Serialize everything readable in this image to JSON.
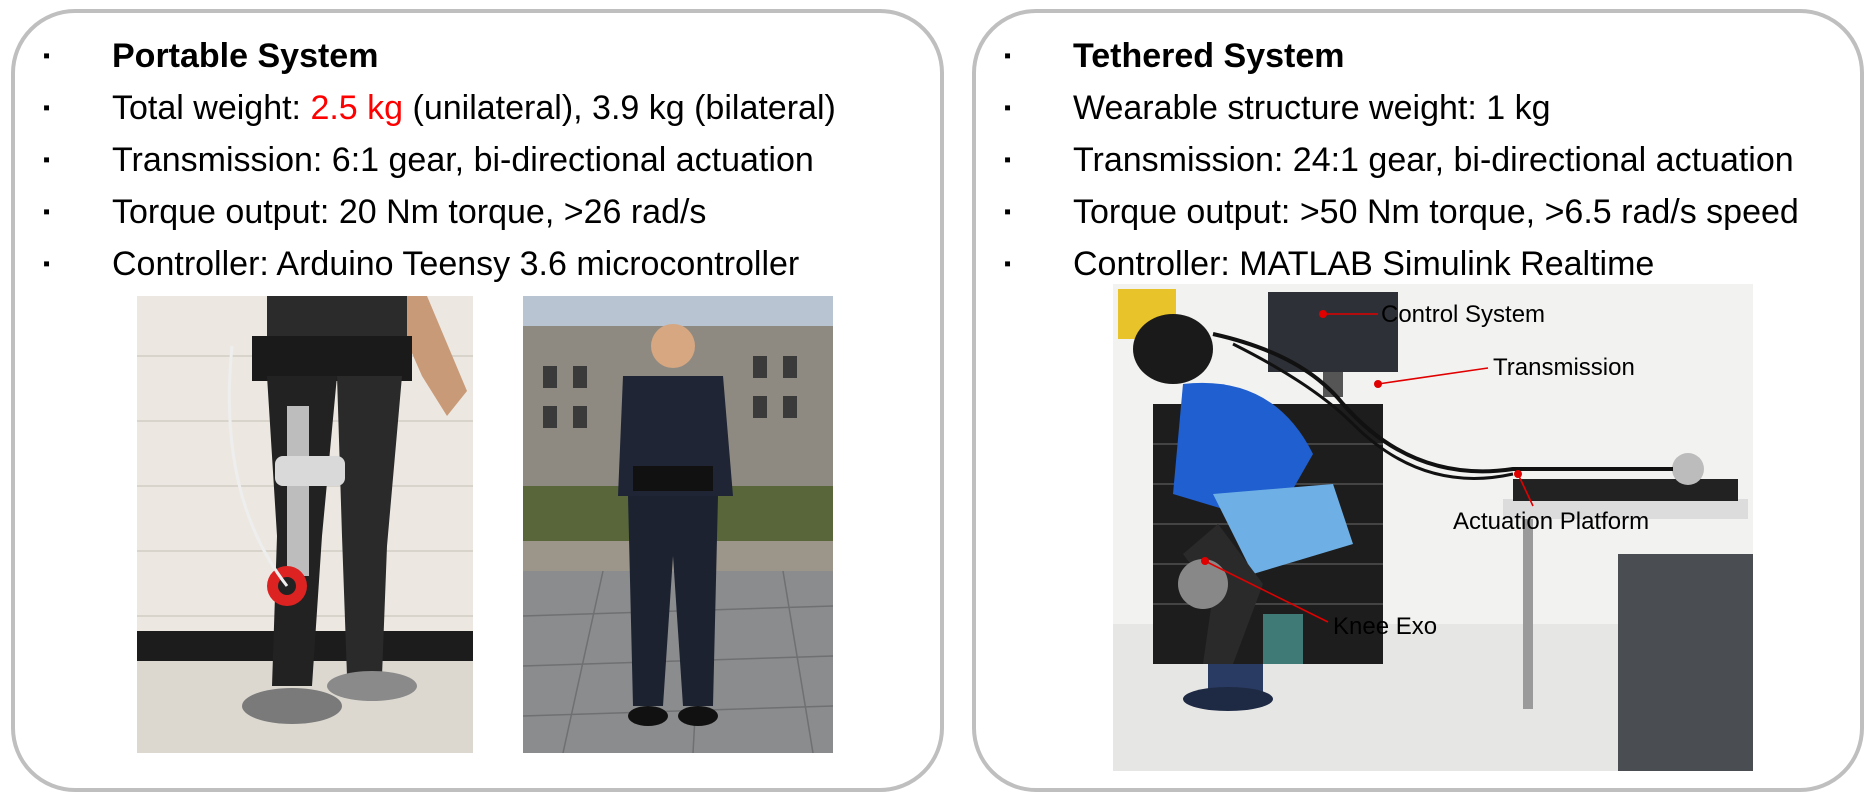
{
  "left_panel": {
    "title": "Portable System",
    "bullet_marker": "▪",
    "weight": {
      "prefix": "Total weight: ",
      "highlight": "2.5 kg",
      "suffix": " (unilateral), 3.9 kg (bilateral)",
      "highlight_color": "#ff0000"
    },
    "transmission": "Transmission: 6:1 gear, bi-directional actuation",
    "torque": "Torque output: 20 Nm torque, >26 rad/s",
    "controller": "Controller: Arduino Teensy 3.6 microcontroller"
  },
  "right_panel": {
    "title": "Tethered System",
    "bullet_marker": "▪",
    "weight": "Wearable structure weight: 1 kg",
    "transmission": "Transmission: 24:1 gear, bi-directional actuation",
    "torque": "Torque output: >50 Nm torque, >6.5 rad/s speed",
    "controller": "Controller: MATLAB Simulink Realtime",
    "photo_labels": {
      "control_system": "Control System",
      "transmission": "Transmission",
      "actuation_platform": "Actuation Platform",
      "knee_exo": "Knee Exo"
    }
  },
  "colors": {
    "panel_border": "#bfbfbf",
    "annotation_line": "#e00000"
  }
}
